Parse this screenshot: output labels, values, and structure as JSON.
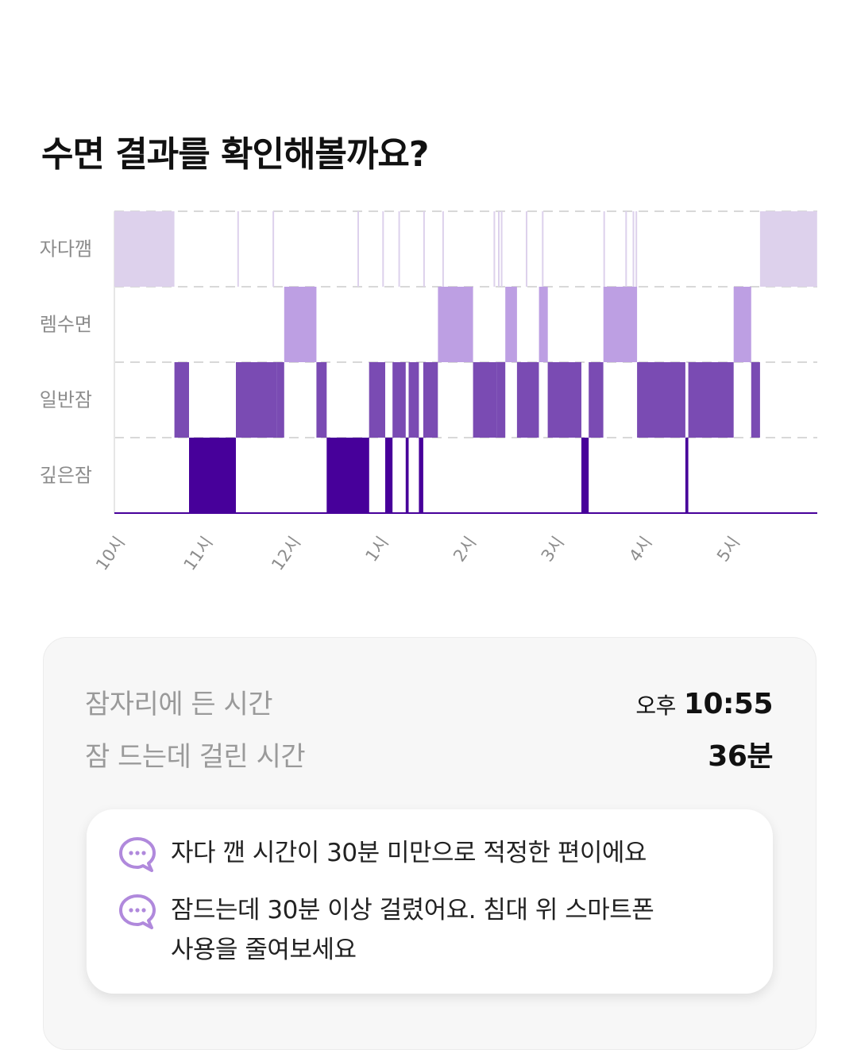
{
  "page": {
    "title": "수면 결과를 확인해볼까요?"
  },
  "colors": {
    "awake": "#ddd1ec",
    "rem": "#bd9fe3",
    "light": "#7a4bb3",
    "deep": "#47009a",
    "grid": "#d8d8d8",
    "axis_text": "#8c8c8c"
  },
  "chart_data": {
    "type": "hypnogram",
    "levels": [
      "자다깸",
      "렘수면",
      "일반잠",
      "깊은잠"
    ],
    "x_ticks": [
      "10시",
      "11시",
      "12시",
      "1시",
      "2시",
      "3시",
      "4시",
      "5시"
    ],
    "x_range": [
      "22:00",
      "06:00"
    ],
    "segments": [
      {
        "stage": "awake",
        "start": "22:00",
        "end": "22:41"
      },
      {
        "stage": "light",
        "start": "22:41",
        "end": "22:51"
      },
      {
        "stage": "deep",
        "start": "22:51",
        "end": "23:23"
      },
      {
        "stage": "light",
        "start": "23:23",
        "end": "23:51"
      },
      {
        "stage": "light",
        "start": "23:51",
        "end": "23:56"
      },
      {
        "stage": "rem",
        "start": "23:56",
        "end": "00:18"
      },
      {
        "stage": "light",
        "start": "00:18",
        "end": "00:25"
      },
      {
        "stage": "deep",
        "start": "00:25",
        "end": "00:54"
      },
      {
        "stage": "light",
        "start": "00:54",
        "end": "01:05"
      },
      {
        "stage": "deep",
        "start": "01:05",
        "end": "01:10"
      },
      {
        "stage": "light",
        "start": "01:10",
        "end": "01:19"
      },
      {
        "stage": "deep",
        "start": "01:19",
        "end": "01:21"
      },
      {
        "stage": "light",
        "start": "01:21",
        "end": "01:28"
      },
      {
        "stage": "deep",
        "start": "01:28",
        "end": "01:31"
      },
      {
        "stage": "light",
        "start": "01:31",
        "end": "01:41"
      },
      {
        "stage": "rem",
        "start": "01:41",
        "end": "02:05"
      },
      {
        "stage": "light",
        "start": "02:05",
        "end": "02:21"
      },
      {
        "stage": "light",
        "start": "02:21",
        "end": "02:27"
      },
      {
        "stage": "rem",
        "start": "02:27",
        "end": "02:35"
      },
      {
        "stage": "light",
        "start": "02:35",
        "end": "02:50"
      },
      {
        "stage": "rem",
        "start": "02:50",
        "end": "02:56"
      },
      {
        "stage": "light",
        "start": "02:56",
        "end": "03:19"
      },
      {
        "stage": "deep",
        "start": "03:19",
        "end": "03:24"
      },
      {
        "stage": "light",
        "start": "03:24",
        "end": "03:34"
      },
      {
        "stage": "rem",
        "start": "03:34",
        "end": "03:57"
      },
      {
        "stage": "light",
        "start": "03:57",
        "end": "04:30"
      },
      {
        "stage": "deep",
        "start": "04:30",
        "end": "04:32"
      },
      {
        "stage": "light",
        "start": "04:32",
        "end": "05:03"
      },
      {
        "stage": "rem",
        "start": "05:03",
        "end": "05:15"
      },
      {
        "stage": "light",
        "start": "05:15",
        "end": "05:21"
      },
      {
        "stage": "awake",
        "start": "05:21",
        "end": "06:00"
      }
    ],
    "brief_awakenings": [
      "23:24",
      "23:48",
      "00:46",
      "01:03",
      "01:14",
      "01:31",
      "01:44",
      "02:19",
      "02:22",
      "02:24",
      "02:41",
      "02:52",
      "03:34",
      "03:49",
      "03:54",
      "03:56"
    ]
  },
  "summary": {
    "rows": [
      {
        "label": "잠자리에 든 시간",
        "prefix": "오후",
        "value": "10:55"
      },
      {
        "label": "잠 드는데 걸린 시간",
        "value": "36분"
      }
    ]
  },
  "tips": [
    {
      "icon": "chat-bubble-icon",
      "text": "자다 깬 시간이 30분 미만으로 적정한 편이에요"
    },
    {
      "icon": "chat-bubble-icon",
      "text": "잠드는데 30분 이상 걸렸어요. 침대 위 스마트폰\n사용을 줄여보세요"
    }
  ]
}
